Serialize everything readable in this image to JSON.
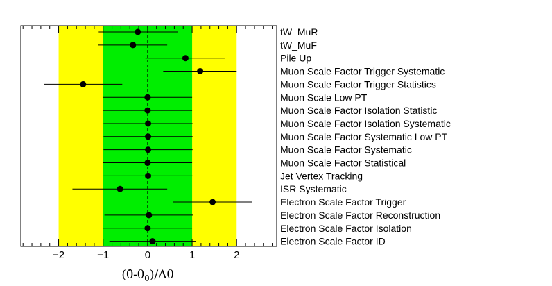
{
  "chart_data": {
    "type": "scatter",
    "xlabel": "(θ̂-θ0)/Δθ",
    "xlim": [
      -2.85,
      2.9
    ],
    "x_ticks": [
      -2,
      -1,
      0,
      1,
      2
    ],
    "tick_labels": [
      "−2",
      "−1",
      "0",
      "1",
      "2"
    ],
    "bands": [
      {
        "range": [
          -2,
          2
        ],
        "color": "#ffff00"
      },
      {
        "range": [
          -1,
          1
        ],
        "color": "#00ee00"
      }
    ],
    "reference_line": {
      "x": 0,
      "style": "dashed"
    },
    "series": [
      {
        "points": [
          {
            "label": "tW_MuR",
            "value": -0.22,
            "err_low": 0.88,
            "err_high": 0.9
          },
          {
            "label": "tW_MuF",
            "value": -0.33,
            "err_low": 0.78,
            "err_high": 0.77
          },
          {
            "label": "Pile Up",
            "value": 0.85,
            "err_low": 0.9,
            "err_high": 0.88
          },
          {
            "label": "Muon Scale Factor Trigger Systematic",
            "value": 1.18,
            "err_low": 0.83,
            "err_high": 0.82
          },
          {
            "label": "Muon Scale Factor Trigger Statistics",
            "value": -1.45,
            "err_low": 0.87,
            "err_high": 0.88
          },
          {
            "label": "Muon Scale Low PT",
            "value": 0.0,
            "err_low": 1.0,
            "err_high": 1.0
          },
          {
            "label": "Muon Scale Factor Isolation Statistic",
            "value": 0.0,
            "err_low": 1.0,
            "err_high": 1.0
          },
          {
            "label": "Muon Scale Factor Isolation Systematic",
            "value": 0.01,
            "err_low": 1.0,
            "err_high": 1.0
          },
          {
            "label": "Muon Scale Factor Systematic Low PT",
            "value": 0.01,
            "err_low": 1.0,
            "err_high": 1.0
          },
          {
            "label": "Muon Scale Factor Systematic",
            "value": 0.01,
            "err_low": 1.0,
            "err_high": 1.0
          },
          {
            "label": "Muon Scale Factor Statistical",
            "value": 0.0,
            "err_low": 1.0,
            "err_high": 1.0
          },
          {
            "label": "Jet Vertex Tracking",
            "value": 0.01,
            "err_low": 1.0,
            "err_high": 1.0
          },
          {
            "label": "ISR Systematic",
            "value": -0.62,
            "err_low": 1.07,
            "err_high": 1.06
          },
          {
            "label": "Electron Scale Factor Trigger",
            "value": 1.46,
            "err_low": 0.89,
            "err_high": 0.89
          },
          {
            "label": "Electron Scale Factor Reconstruction",
            "value": 0.03,
            "err_low": 1.0,
            "err_high": 1.0
          },
          {
            "label": "Electron Scale Factor Isolation",
            "value": 0.0,
            "err_low": 1.0,
            "err_high": 1.0
          },
          {
            "label": "Electron Scale Factor ID",
            "value": 0.11,
            "err_low": 0.97,
            "err_high": 0.98
          }
        ]
      }
    ]
  }
}
